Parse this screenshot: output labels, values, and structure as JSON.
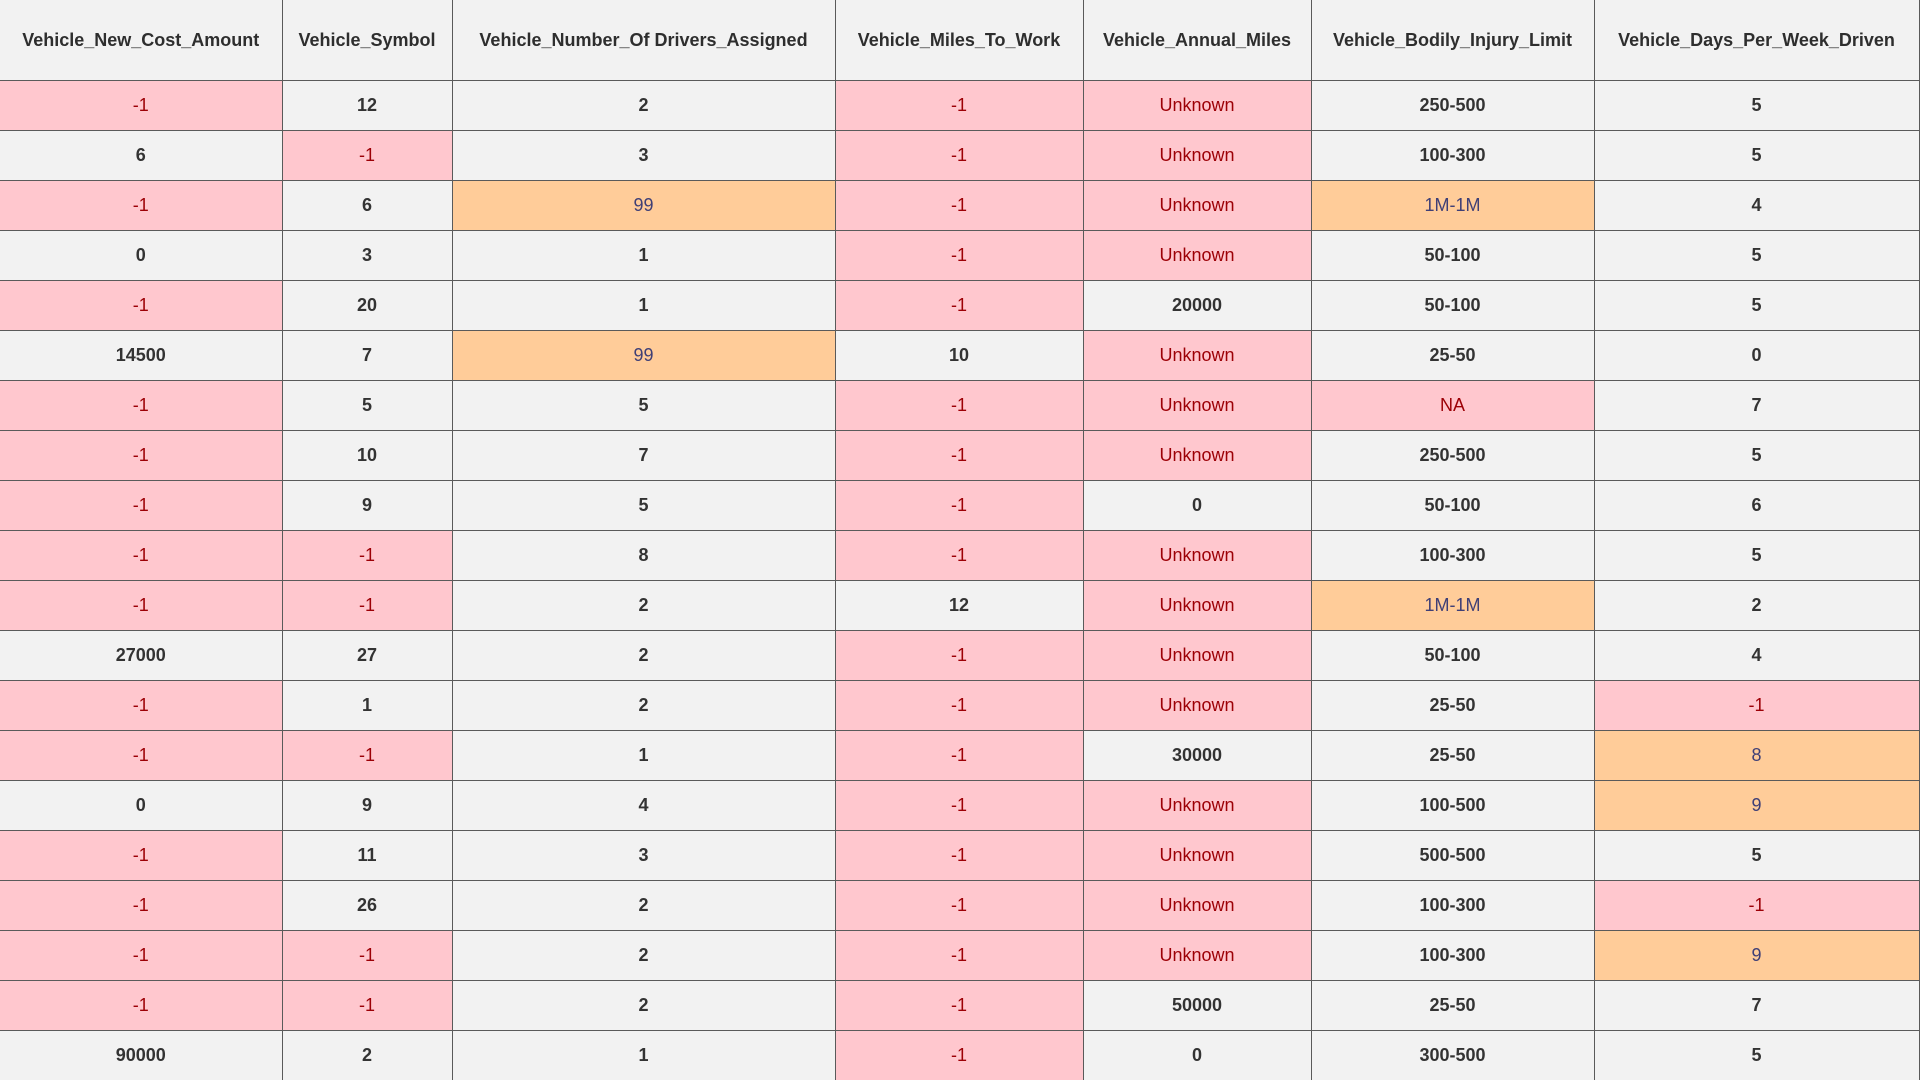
{
  "table": {
    "columns": [
      "Vehicle_New_Cost_Amount",
      "Vehicle_Symbol",
      "Vehicle_Number_Of Drivers_Assigned",
      "Vehicle_Miles_To_Work",
      "Vehicle_Annual_Miles",
      "Vehicle_Bodily_Injury_Limit",
      "Vehicle_Days_Per_Week_Driven"
    ],
    "rows": [
      [
        {
          "v": "-1",
          "s": "bad"
        },
        {
          "v": "12",
          "s": "ok"
        },
        {
          "v": "2",
          "s": "ok"
        },
        {
          "v": "-1",
          "s": "bad"
        },
        {
          "v": "Unknown",
          "s": "bad"
        },
        {
          "v": "250-500",
          "s": "ok"
        },
        {
          "v": "5",
          "s": "ok"
        }
      ],
      [
        {
          "v": "6",
          "s": "ok"
        },
        {
          "v": "-1",
          "s": "bad"
        },
        {
          "v": "3",
          "s": "ok"
        },
        {
          "v": "-1",
          "s": "bad"
        },
        {
          "v": "Unknown",
          "s": "bad"
        },
        {
          "v": "100-300",
          "s": "ok"
        },
        {
          "v": "5",
          "s": "ok"
        }
      ],
      [
        {
          "v": "-1",
          "s": "bad"
        },
        {
          "v": "6",
          "s": "ok"
        },
        {
          "v": "99",
          "s": "warn"
        },
        {
          "v": "-1",
          "s": "bad"
        },
        {
          "v": "Unknown",
          "s": "bad"
        },
        {
          "v": "1M-1M",
          "s": "warn"
        },
        {
          "v": "4",
          "s": "ok"
        }
      ],
      [
        {
          "v": "0",
          "s": "ok"
        },
        {
          "v": "3",
          "s": "ok"
        },
        {
          "v": "1",
          "s": "ok"
        },
        {
          "v": "-1",
          "s": "bad"
        },
        {
          "v": "Unknown",
          "s": "bad"
        },
        {
          "v": "50-100",
          "s": "ok"
        },
        {
          "v": "5",
          "s": "ok"
        }
      ],
      [
        {
          "v": "-1",
          "s": "bad"
        },
        {
          "v": "20",
          "s": "ok"
        },
        {
          "v": "1",
          "s": "ok"
        },
        {
          "v": "-1",
          "s": "bad"
        },
        {
          "v": "20000",
          "s": "ok"
        },
        {
          "v": "50-100",
          "s": "ok"
        },
        {
          "v": "5",
          "s": "ok"
        }
      ],
      [
        {
          "v": "14500",
          "s": "ok"
        },
        {
          "v": "7",
          "s": "ok"
        },
        {
          "v": "99",
          "s": "warn"
        },
        {
          "v": "10",
          "s": "ok"
        },
        {
          "v": "Unknown",
          "s": "bad"
        },
        {
          "v": "25-50",
          "s": "ok"
        },
        {
          "v": "0",
          "s": "ok"
        }
      ],
      [
        {
          "v": "-1",
          "s": "bad"
        },
        {
          "v": "5",
          "s": "ok"
        },
        {
          "v": "5",
          "s": "ok"
        },
        {
          "v": "-1",
          "s": "bad"
        },
        {
          "v": "Unknown",
          "s": "bad"
        },
        {
          "v": "NA",
          "s": "bad"
        },
        {
          "v": "7",
          "s": "ok"
        }
      ],
      [
        {
          "v": "-1",
          "s": "bad"
        },
        {
          "v": "10",
          "s": "ok"
        },
        {
          "v": "7",
          "s": "ok"
        },
        {
          "v": "-1",
          "s": "bad"
        },
        {
          "v": "Unknown",
          "s": "bad"
        },
        {
          "v": "250-500",
          "s": "ok"
        },
        {
          "v": "5",
          "s": "ok"
        }
      ],
      [
        {
          "v": "-1",
          "s": "bad"
        },
        {
          "v": "9",
          "s": "ok"
        },
        {
          "v": "5",
          "s": "ok"
        },
        {
          "v": "-1",
          "s": "bad"
        },
        {
          "v": "0",
          "s": "ok"
        },
        {
          "v": "50-100",
          "s": "ok"
        },
        {
          "v": "6",
          "s": "ok"
        }
      ],
      [
        {
          "v": "-1",
          "s": "bad"
        },
        {
          "v": "-1",
          "s": "bad"
        },
        {
          "v": "8",
          "s": "ok"
        },
        {
          "v": "-1",
          "s": "bad"
        },
        {
          "v": "Unknown",
          "s": "bad"
        },
        {
          "v": "100-300",
          "s": "ok"
        },
        {
          "v": "5",
          "s": "ok"
        }
      ],
      [
        {
          "v": "-1",
          "s": "bad"
        },
        {
          "v": "-1",
          "s": "bad"
        },
        {
          "v": "2",
          "s": "ok"
        },
        {
          "v": "12",
          "s": "ok"
        },
        {
          "v": "Unknown",
          "s": "bad"
        },
        {
          "v": "1M-1M",
          "s": "warn"
        },
        {
          "v": "2",
          "s": "ok"
        }
      ],
      [
        {
          "v": "27000",
          "s": "ok"
        },
        {
          "v": "27",
          "s": "ok"
        },
        {
          "v": "2",
          "s": "ok"
        },
        {
          "v": "-1",
          "s": "bad"
        },
        {
          "v": "Unknown",
          "s": "bad"
        },
        {
          "v": "50-100",
          "s": "ok"
        },
        {
          "v": "4",
          "s": "ok"
        }
      ],
      [
        {
          "v": "-1",
          "s": "bad"
        },
        {
          "v": "1",
          "s": "ok"
        },
        {
          "v": "2",
          "s": "ok"
        },
        {
          "v": "-1",
          "s": "bad"
        },
        {
          "v": "Unknown",
          "s": "bad"
        },
        {
          "v": "25-50",
          "s": "ok"
        },
        {
          "v": "-1",
          "s": "bad"
        }
      ],
      [
        {
          "v": "-1",
          "s": "bad"
        },
        {
          "v": "-1",
          "s": "bad"
        },
        {
          "v": "1",
          "s": "ok"
        },
        {
          "v": "-1",
          "s": "bad"
        },
        {
          "v": "30000",
          "s": "ok"
        },
        {
          "v": "25-50",
          "s": "ok"
        },
        {
          "v": "8",
          "s": "warn"
        }
      ],
      [
        {
          "v": "0",
          "s": "ok"
        },
        {
          "v": "9",
          "s": "ok"
        },
        {
          "v": "4",
          "s": "ok"
        },
        {
          "v": "-1",
          "s": "bad"
        },
        {
          "v": "Unknown",
          "s": "bad"
        },
        {
          "v": "100-500",
          "s": "ok"
        },
        {
          "v": "9",
          "s": "warn"
        }
      ],
      [
        {
          "v": "-1",
          "s": "bad"
        },
        {
          "v": "11",
          "s": "ok"
        },
        {
          "v": "3",
          "s": "ok"
        },
        {
          "v": "-1",
          "s": "bad"
        },
        {
          "v": "Unknown",
          "s": "bad"
        },
        {
          "v": "500-500",
          "s": "ok"
        },
        {
          "v": "5",
          "s": "ok"
        }
      ],
      [
        {
          "v": "-1",
          "s": "bad"
        },
        {
          "v": "26",
          "s": "ok"
        },
        {
          "v": "2",
          "s": "ok"
        },
        {
          "v": "-1",
          "s": "bad"
        },
        {
          "v": "Unknown",
          "s": "bad"
        },
        {
          "v": "100-300",
          "s": "ok"
        },
        {
          "v": "-1",
          "s": "bad"
        }
      ],
      [
        {
          "v": "-1",
          "s": "bad"
        },
        {
          "v": "-1",
          "s": "bad"
        },
        {
          "v": "2",
          "s": "ok"
        },
        {
          "v": "-1",
          "s": "bad"
        },
        {
          "v": "Unknown",
          "s": "bad"
        },
        {
          "v": "100-300",
          "s": "ok"
        },
        {
          "v": "9",
          "s": "warn"
        }
      ],
      [
        {
          "v": "-1",
          "s": "bad"
        },
        {
          "v": "-1",
          "s": "bad"
        },
        {
          "v": "2",
          "s": "ok"
        },
        {
          "v": "-1",
          "s": "bad"
        },
        {
          "v": "50000",
          "s": "ok"
        },
        {
          "v": "25-50",
          "s": "ok"
        },
        {
          "v": "7",
          "s": "ok"
        }
      ],
      [
        {
          "v": "90000",
          "s": "ok"
        },
        {
          "v": "2",
          "s": "ok"
        },
        {
          "v": "1",
          "s": "ok"
        },
        {
          "v": "-1",
          "s": "bad"
        },
        {
          "v": "0",
          "s": "ok"
        },
        {
          "v": "300-500",
          "s": "ok"
        },
        {
          "v": "5",
          "s": "ok"
        }
      ]
    ]
  },
  "colors": {
    "cell_background": "#f2f2f2",
    "bad_fill": "#ffc7ce",
    "bad_text": "#9c0006",
    "warn_fill": "#ffcc99",
    "warn_text": "#3f3f76",
    "grid_line": "#5a5a5a"
  }
}
